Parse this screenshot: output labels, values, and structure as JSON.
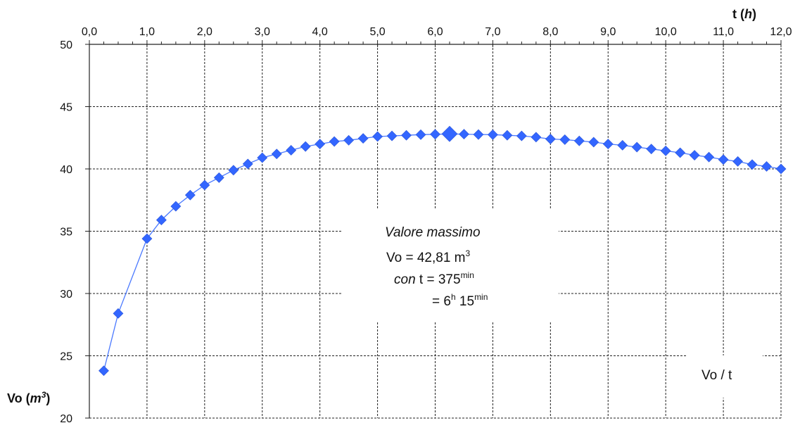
{
  "chart_data": {
    "type": "scatter",
    "title": "",
    "x_axis": {
      "label": "t",
      "unit": "h",
      "position": "top",
      "range": [
        0,
        12
      ],
      "major_step": 1,
      "minor_step": 0.25,
      "tick_labels": [
        "0,0",
        "1,0",
        "2,0",
        "3,0",
        "4,0",
        "5,0",
        "6,0",
        "7,0",
        "8,0",
        "9,0",
        "10,0",
        "11,0",
        "12,0"
      ]
    },
    "y_axis": {
      "label": "Vo",
      "unit": "m",
      "unit_superscript": "3",
      "range": [
        20,
        50
      ],
      "major_step": 5,
      "tick_labels": [
        "20",
        "25",
        "30",
        "35",
        "40",
        "45",
        "50"
      ]
    },
    "grid": "dashed, both axes",
    "series": [
      {
        "name": "Vo / t",
        "color": "#3366ff",
        "line_color": "#4a79ff",
        "marker": "diamond",
        "x": [
          0.25,
          0.5,
          1.0,
          1.25,
          1.5,
          1.75,
          2.0,
          2.25,
          2.5,
          2.75,
          3.0,
          3.25,
          3.5,
          3.75,
          4.0,
          4.25,
          4.5,
          4.75,
          5.0,
          5.25,
          5.5,
          5.75,
          6.0,
          6.25,
          6.5,
          6.75,
          7.0,
          7.25,
          7.5,
          7.75,
          8.0,
          8.25,
          8.5,
          8.75,
          9.0,
          9.25,
          9.5,
          9.75,
          10.0,
          10.25,
          10.5,
          10.75,
          11.0,
          11.25,
          11.5,
          11.75,
          12.0
        ],
        "y": [
          23.8,
          28.4,
          34.4,
          35.9,
          37.0,
          37.9,
          38.7,
          39.3,
          39.9,
          40.4,
          40.9,
          41.2,
          41.5,
          41.8,
          42.0,
          42.2,
          42.3,
          42.45,
          42.6,
          42.65,
          42.7,
          42.75,
          42.78,
          42.81,
          42.79,
          42.76,
          42.75,
          42.7,
          42.65,
          42.55,
          42.4,
          42.35,
          42.25,
          42.15,
          42.0,
          41.9,
          41.75,
          41.6,
          41.45,
          41.3,
          41.1,
          40.95,
          40.75,
          40.6,
          40.35,
          40.2,
          40.0
        ]
      }
    ],
    "highlight_point": {
      "x": 6.25,
      "y": 42.81
    },
    "annotation": {
      "heading": "Valore massimo",
      "vo_prefix": "Vo =  42,81 m",
      "vo_sup": "3",
      "con_word": "con",
      "t_text": " t = 375",
      "t_sup": "min",
      "eq_prefix": "= 6",
      "h_sup": "h",
      "mid": " 15",
      "min_sup": "min"
    },
    "legend": {
      "label": "Vo / t",
      "position": "bottom-right"
    }
  }
}
